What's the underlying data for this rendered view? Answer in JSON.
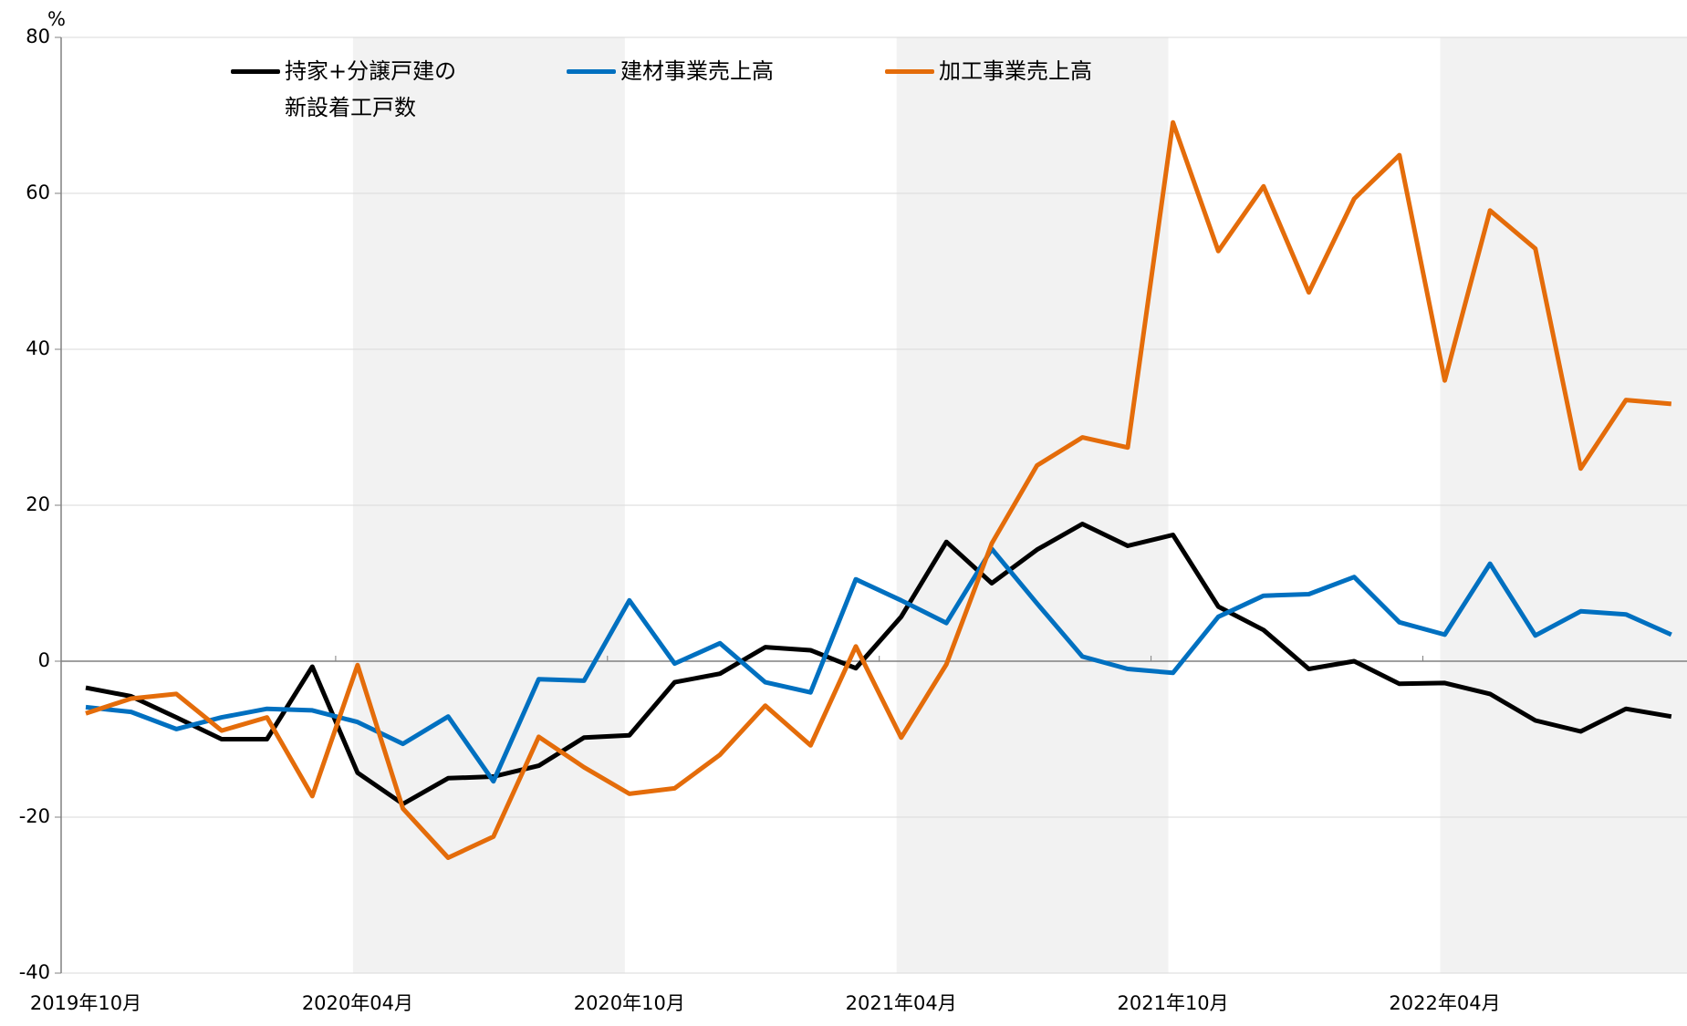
{
  "chart_data": {
    "type": "line",
    "y_label": "%",
    "categories": [
      "2019年10月",
      null,
      null,
      null,
      null,
      null,
      "2020年04月",
      null,
      null,
      null,
      null,
      null,
      "2020年10月",
      null,
      null,
      null,
      null,
      null,
      "2021年04月",
      null,
      null,
      null,
      null,
      null,
      "2021年10月",
      null,
      null,
      null,
      null,
      null,
      "2022年04月",
      null,
      null,
      null,
      null,
      null
    ],
    "series": [
      {
        "name": "持家+分譲戸建の新設着工戸数",
        "color": "#000000",
        "values": [
          -3.4,
          -4.5,
          -7.2,
          -10,
          -10,
          -0.7,
          -14.3,
          -18.3,
          -15,
          -14.8,
          -13.4,
          -9.8,
          -9.5,
          -2.7,
          -1.6,
          1.8,
          1.4,
          -0.9,
          5.7,
          15.3,
          10,
          14.3,
          17.6,
          14.8,
          16.2,
          7,
          4,
          -1,
          0,
          -2.9,
          -2.8,
          -4.2,
          -7.6,
          -9,
          -6.1,
          -7.1
        ]
      },
      {
        "name": "建材事業売上高",
        "color": "#0070c0",
        "values": [
          -5.9,
          -6.5,
          -8.7,
          -7.2,
          -6.1,
          -6.3,
          -7.8,
          -10.6,
          -7.1,
          -15.4,
          -2.3,
          -2.5,
          7.8,
          -0.3,
          2.3,
          -2.7,
          -4,
          10.5,
          7.8,
          4.9,
          14.4,
          7.4,
          0.6,
          -1,
          -1.5,
          5.7,
          8.4,
          8.6,
          10.8,
          5,
          3.4,
          12.5,
          3.3,
          6.4,
          6,
          3.4
        ]
      },
      {
        "name": "加工事業売上高",
        "color": "#e46c0a",
        "values": [
          -6.7,
          -4.8,
          -4.2,
          -8.9,
          -7.2,
          -17.3,
          -0.5,
          -18.9,
          -25.2,
          -22.5,
          -9.7,
          -13.6,
          -17,
          -16.3,
          -12,
          -5.7,
          -10.8,
          1.9,
          -9.8,
          -0.4,
          15.1,
          25.1,
          28.7,
          27.4,
          69.1,
          52.6,
          60.9,
          47.3,
          59.3,
          64.9,
          36,
          57.8,
          52.9,
          24.7,
          33.5,
          33
        ]
      }
    ],
    "ylim": [
      -40,
      80
    ],
    "yticks": [
      -40,
      -20,
      0,
      20,
      40,
      60,
      80
    ],
    "grid": true
  }
}
